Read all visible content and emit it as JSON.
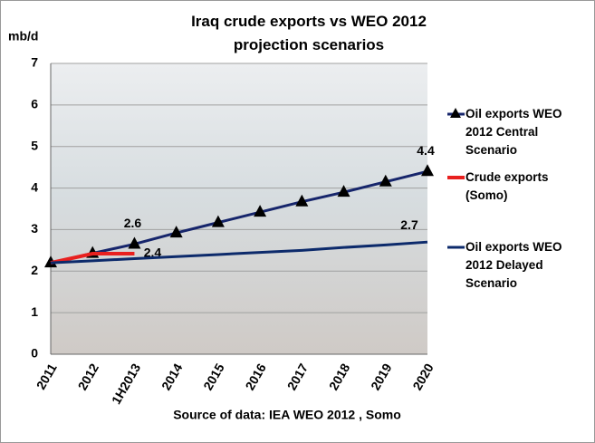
{
  "chart_data": {
    "type": "line",
    "title": "Iraq crude exports vs WEO 2012 projection scenarios",
    "y_label": "mb/d",
    "source": "Source of data: IEA WEO 2012 , Somo",
    "categories": [
      "2011",
      "2012",
      "1H2013",
      "2014",
      "2015",
      "2016",
      "2017",
      "2018",
      "2019",
      "2020"
    ],
    "series": [
      {
        "name": "Oil exports WEO 2012 Central Scenario",
        "color": "#16256b",
        "marker": "triangle",
        "values": [
          2.2,
          2.43,
          2.65,
          2.92,
          3.17,
          3.42,
          3.67,
          3.9,
          4.15,
          4.4
        ],
        "value_labels": [
          null,
          null,
          "2.6",
          null,
          null,
          null,
          null,
          null,
          null,
          "4.4"
        ]
      },
      {
        "name": "Crude exports (Somo)",
        "color": "#e8201f",
        "values": [
          2.2,
          2.42,
          2.42,
          null,
          null,
          null,
          null,
          null,
          null,
          null
        ],
        "value_labels": [
          null,
          null,
          "2.4",
          null,
          null,
          null,
          null,
          null,
          null,
          null
        ]
      },
      {
        "name": "Oil exports WEO 2012 Delayed Scenario",
        "color": "#0c2a6b",
        "values": [
          2.2,
          2.25,
          2.3,
          2.35,
          2.4,
          2.45,
          2.5,
          2.57,
          2.63,
          2.7
        ],
        "value_labels": [
          null,
          null,
          null,
          null,
          null,
          null,
          null,
          null,
          null,
          "2.7"
        ]
      }
    ],
    "ylim": [
      0,
      7
    ],
    "yticks": [
      0,
      1,
      2,
      3,
      4,
      5,
      6,
      7
    ],
    "grid": true
  }
}
